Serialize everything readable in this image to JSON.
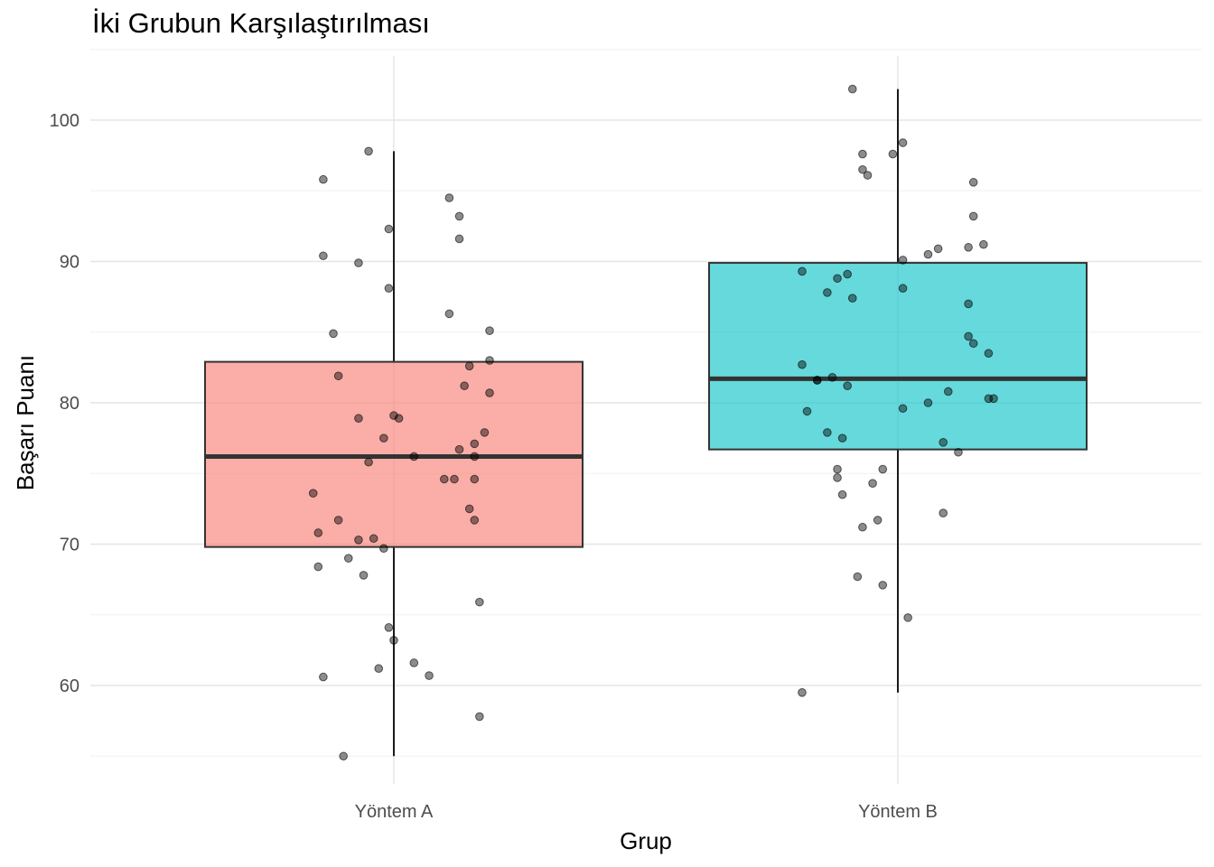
{
  "chart_data": {
    "type": "box",
    "title": "İki Grubun Karşılaştırılması",
    "xlabel": "Grup",
    "ylabel": "Başarı Puanı",
    "ylim": [
      54.5,
      104.5
    ],
    "yticks": [
      60,
      70,
      80,
      90,
      100
    ],
    "grid": true,
    "legend": "none",
    "categories": [
      "Yöntem A",
      "Yöntem B"
    ],
    "colors": [
      "#F8766D",
      "#00BFC4"
    ],
    "boxes": [
      {
        "min": 55.0,
        "q1": 69.8,
        "median": 76.2,
        "q3": 82.9,
        "max": 97.8
      },
      {
        "min": 59.5,
        "q1": 76.7,
        "median": 81.7,
        "q3": 89.9,
        "max": 102.2
      }
    ],
    "points": [
      {
        "group": "Yöntem A",
        "jitter": -0.14,
        "y": 95.8
      },
      {
        "group": "Yöntem A",
        "jitter": -0.05,
        "y": 97.8
      },
      {
        "group": "Yöntem A",
        "jitter": -0.01,
        "y": 92.3
      },
      {
        "group": "Yöntem A",
        "jitter": 0.11,
        "y": 94.5
      },
      {
        "group": "Yöntem A",
        "jitter": 0.13,
        "y": 93.2
      },
      {
        "group": "Yöntem A",
        "jitter": 0.13,
        "y": 91.6
      },
      {
        "group": "Yöntem A",
        "jitter": -0.14,
        "y": 90.4
      },
      {
        "group": "Yöntem A",
        "jitter": -0.07,
        "y": 89.9
      },
      {
        "group": "Yöntem A",
        "jitter": -0.01,
        "y": 88.1
      },
      {
        "group": "Yöntem A",
        "jitter": 0.11,
        "y": 86.3
      },
      {
        "group": "Yöntem A",
        "jitter": 0.19,
        "y": 85.1
      },
      {
        "group": "Yöntem A",
        "jitter": -0.12,
        "y": 84.9
      },
      {
        "group": "Yöntem A",
        "jitter": 0.19,
        "y": 83.0
      },
      {
        "group": "Yöntem A",
        "jitter": 0.15,
        "y": 82.6
      },
      {
        "group": "Yöntem A",
        "jitter": -0.11,
        "y": 81.9
      },
      {
        "group": "Yöntem A",
        "jitter": 0.14,
        "y": 81.2
      },
      {
        "group": "Yöntem A",
        "jitter": 0.19,
        "y": 80.7
      },
      {
        "group": "Yöntem A",
        "jitter": 0.0,
        "y": 79.1
      },
      {
        "group": "Yöntem A",
        "jitter": 0.01,
        "y": 78.9
      },
      {
        "group": "Yöntem A",
        "jitter": -0.07,
        "y": 78.9
      },
      {
        "group": "Yöntem A",
        "jitter": 0.18,
        "y": 77.9
      },
      {
        "group": "Yöntem A",
        "jitter": -0.02,
        "y": 77.5
      },
      {
        "group": "Yöntem A",
        "jitter": 0.16,
        "y": 77.1
      },
      {
        "group": "Yöntem A",
        "jitter": 0.13,
        "y": 76.7
      },
      {
        "group": "Yöntem A",
        "jitter": 0.04,
        "y": 76.2
      },
      {
        "group": "Yöntem A",
        "jitter": 0.16,
        "y": 76.2
      },
      {
        "group": "Yöntem A",
        "jitter": -0.05,
        "y": 75.8
      },
      {
        "group": "Yöntem A",
        "jitter": 0.1,
        "y": 74.6
      },
      {
        "group": "Yöntem A",
        "jitter": 0.12,
        "y": 74.6
      },
      {
        "group": "Yöntem A",
        "jitter": 0.16,
        "y": 74.6
      },
      {
        "group": "Yöntem A",
        "jitter": -0.16,
        "y": 73.6
      },
      {
        "group": "Yöntem A",
        "jitter": 0.15,
        "y": 72.5
      },
      {
        "group": "Yöntem A",
        "jitter": -0.11,
        "y": 71.7
      },
      {
        "group": "Yöntem A",
        "jitter": 0.16,
        "y": 71.7
      },
      {
        "group": "Yöntem A",
        "jitter": -0.15,
        "y": 70.8
      },
      {
        "group": "Yöntem A",
        "jitter": -0.07,
        "y": 70.3
      },
      {
        "group": "Yöntem A",
        "jitter": -0.04,
        "y": 70.4
      },
      {
        "group": "Yöntem A",
        "jitter": -0.02,
        "y": 69.7
      },
      {
        "group": "Yöntem A",
        "jitter": -0.09,
        "y": 69.0
      },
      {
        "group": "Yöntem A",
        "jitter": -0.15,
        "y": 68.4
      },
      {
        "group": "Yöntem A",
        "jitter": -0.06,
        "y": 67.8
      },
      {
        "group": "Yöntem A",
        "jitter": 0.17,
        "y": 65.9
      },
      {
        "group": "Yöntem A",
        "jitter": -0.01,
        "y": 64.1
      },
      {
        "group": "Yöntem A",
        "jitter": 0.0,
        "y": 63.2
      },
      {
        "group": "Yöntem A",
        "jitter": 0.04,
        "y": 61.6
      },
      {
        "group": "Yöntem A",
        "jitter": -0.03,
        "y": 61.2
      },
      {
        "group": "Yöntem A",
        "jitter": 0.07,
        "y": 60.7
      },
      {
        "group": "Yöntem A",
        "jitter": -0.14,
        "y": 60.6
      },
      {
        "group": "Yöntem A",
        "jitter": 0.17,
        "y": 57.8
      },
      {
        "group": "Yöntem A",
        "jitter": -0.1,
        "y": 55.0
      },
      {
        "group": "Yöntem B",
        "jitter": -0.09,
        "y": 102.2
      },
      {
        "group": "Yöntem B",
        "jitter": 0.01,
        "y": 98.4
      },
      {
        "group": "Yöntem B",
        "jitter": -0.07,
        "y": 97.6
      },
      {
        "group": "Yöntem B",
        "jitter": -0.01,
        "y": 97.6
      },
      {
        "group": "Yöntem B",
        "jitter": -0.07,
        "y": 96.5
      },
      {
        "group": "Yöntem B",
        "jitter": -0.06,
        "y": 96.1
      },
      {
        "group": "Yöntem B",
        "jitter": 0.15,
        "y": 95.6
      },
      {
        "group": "Yöntem B",
        "jitter": 0.15,
        "y": 93.2
      },
      {
        "group": "Yöntem B",
        "jitter": 0.17,
        "y": 91.2
      },
      {
        "group": "Yöntem B",
        "jitter": 0.14,
        "y": 91.0
      },
      {
        "group": "Yöntem B",
        "jitter": 0.08,
        "y": 90.9
      },
      {
        "group": "Yöntem B",
        "jitter": 0.06,
        "y": 90.5
      },
      {
        "group": "Yöntem B",
        "jitter": 0.01,
        "y": 90.1
      },
      {
        "group": "Yöntem B",
        "jitter": -0.19,
        "y": 89.3
      },
      {
        "group": "Yöntem B",
        "jitter": -0.1,
        "y": 89.1
      },
      {
        "group": "Yöntem B",
        "jitter": -0.12,
        "y": 88.8
      },
      {
        "group": "Yöntem B",
        "jitter": 0.01,
        "y": 88.1
      },
      {
        "group": "Yöntem B",
        "jitter": -0.14,
        "y": 87.8
      },
      {
        "group": "Yöntem B",
        "jitter": -0.09,
        "y": 87.4
      },
      {
        "group": "Yöntem B",
        "jitter": 0.14,
        "y": 87.0
      },
      {
        "group": "Yöntem B",
        "jitter": 0.14,
        "y": 84.7
      },
      {
        "group": "Yöntem B",
        "jitter": 0.15,
        "y": 84.2
      },
      {
        "group": "Yöntem B",
        "jitter": 0.18,
        "y": 83.5
      },
      {
        "group": "Yöntem B",
        "jitter": -0.19,
        "y": 82.7
      },
      {
        "group": "Yöntem B",
        "jitter": -0.13,
        "y": 81.8
      },
      {
        "group": "Yöntem B",
        "jitter": -0.16,
        "y": 81.6
      },
      {
        "group": "Yöntem B",
        "jitter": -0.16,
        "y": 81.6
      },
      {
        "group": "Yöntem B",
        "jitter": -0.1,
        "y": 81.2
      },
      {
        "group": "Yöntem B",
        "jitter": 0.1,
        "y": 80.8
      },
      {
        "group": "Yöntem B",
        "jitter": 0.18,
        "y": 80.3
      },
      {
        "group": "Yöntem B",
        "jitter": 0.19,
        "y": 80.3
      },
      {
        "group": "Yöntem B",
        "jitter": 0.06,
        "y": 80.0
      },
      {
        "group": "Yöntem B",
        "jitter": 0.01,
        "y": 79.6
      },
      {
        "group": "Yöntem B",
        "jitter": -0.18,
        "y": 79.4
      },
      {
        "group": "Yöntem B",
        "jitter": -0.14,
        "y": 77.9
      },
      {
        "group": "Yöntem B",
        "jitter": -0.11,
        "y": 77.5
      },
      {
        "group": "Yöntem B",
        "jitter": 0.09,
        "y": 77.2
      },
      {
        "group": "Yöntem B",
        "jitter": 0.12,
        "y": 76.5
      },
      {
        "group": "Yöntem B",
        "jitter": -0.12,
        "y": 75.3
      },
      {
        "group": "Yöntem B",
        "jitter": -0.03,
        "y": 75.3
      },
      {
        "group": "Yöntem B",
        "jitter": -0.12,
        "y": 74.7
      },
      {
        "group": "Yöntem B",
        "jitter": -0.05,
        "y": 74.3
      },
      {
        "group": "Yöntem B",
        "jitter": -0.11,
        "y": 73.5
      },
      {
        "group": "Yöntem B",
        "jitter": 0.09,
        "y": 72.2
      },
      {
        "group": "Yöntem B",
        "jitter": -0.04,
        "y": 71.7
      },
      {
        "group": "Yöntem B",
        "jitter": -0.07,
        "y": 71.2
      },
      {
        "group": "Yöntem B",
        "jitter": -0.08,
        "y": 67.7
      },
      {
        "group": "Yöntem B",
        "jitter": -0.03,
        "y": 67.1
      },
      {
        "group": "Yöntem B",
        "jitter": 0.02,
        "y": 64.8
      },
      {
        "group": "Yöntem B",
        "jitter": -0.19,
        "y": 59.5
      }
    ]
  }
}
